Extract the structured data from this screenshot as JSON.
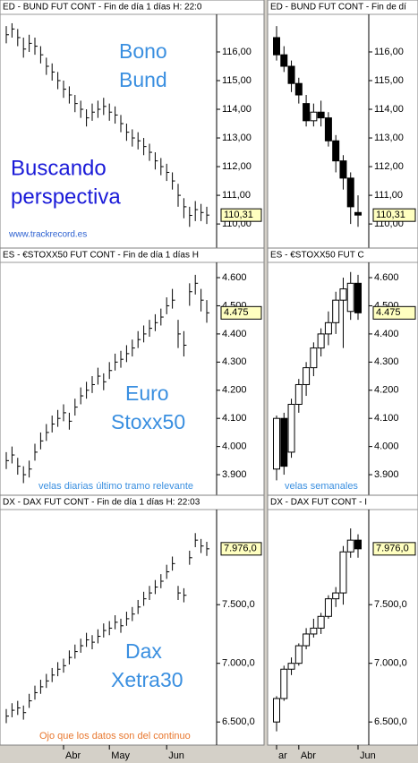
{
  "chart_data": [
    {
      "type": "ohlc",
      "title": "ED - BUND FUT CONT - Fin de día 1 días H: 22:0",
      "high": [
        116.9,
        117.0,
        116.8,
        116.5,
        116.6,
        116.5,
        116.2,
        115.8,
        115.6,
        115.3,
        115.0,
        114.8,
        114.5,
        114.3,
        114.0,
        114.2,
        114.3,
        114.4,
        114.2,
        114.1,
        113.8,
        113.5,
        113.3,
        113.2,
        113.0,
        112.8,
        112.5,
        112.3,
        112.1,
        111.8,
        111.4,
        110.9,
        110.6,
        110.8,
        110.7,
        110.6
      ],
      "low": [
        116.3,
        116.5,
        116.2,
        115.8,
        116.0,
        115.9,
        115.6,
        115.2,
        115.0,
        114.7,
        114.4,
        114.2,
        113.9,
        113.7,
        113.4,
        113.6,
        113.7,
        113.8,
        113.6,
        113.5,
        113.2,
        112.9,
        112.7,
        112.6,
        112.4,
        112.2,
        111.9,
        111.7,
        111.5,
        111.2,
        110.6,
        110.2,
        109.9,
        110.1,
        110.1,
        110.0
      ],
      "close": [
        116.6,
        116.8,
        116.5,
        116.1,
        116.3,
        116.2,
        115.9,
        115.5,
        115.3,
        115.0,
        114.7,
        114.5,
        114.2,
        114.0,
        113.7,
        113.9,
        114.0,
        114.1,
        113.9,
        113.8,
        113.5,
        113.2,
        113.0,
        112.9,
        112.7,
        112.5,
        112.2,
        112.0,
        111.8,
        111.5,
        111.0,
        110.6,
        110.3,
        110.5,
        110.4,
        110.31
      ],
      "ylim": [
        109.16,
        117.28
      ],
      "yticks": [
        {
          "value": 110,
          "label": "110,00"
        },
        {
          "value": 111,
          "label": "111,00"
        },
        {
          "value": 112,
          "label": "112,00"
        },
        {
          "value": 113,
          "label": "113,00"
        },
        {
          "value": 114,
          "label": "114,00"
        },
        {
          "value": 115,
          "label": "115,00"
        },
        {
          "value": 116,
          "label": "116,00"
        }
      ],
      "last": {
        "value": 110.31,
        "label": "110,31"
      },
      "annotations": [
        "Bono",
        "Bund",
        "Buscando",
        "perspectiva",
        "www.trackrecord.es"
      ]
    },
    {
      "type": "candlestick",
      "title": "ED - BUND FUT CONT - Fin de dí",
      "open": [
        116.5,
        115.9,
        115.5,
        114.9,
        114.2,
        113.6,
        113.9,
        113.7,
        112.9,
        112.2,
        111.6,
        110.4
      ],
      "high": [
        116.9,
        116.2,
        115.7,
        115.1,
        114.5,
        114.2,
        114.3,
        113.9,
        113.1,
        112.4,
        111.8,
        111.0
      ],
      "low": [
        115.7,
        115.3,
        114.6,
        114.2,
        113.4,
        113.4,
        113.4,
        112.7,
        111.8,
        111.2,
        110.0,
        109.9
      ],
      "close": [
        115.9,
        115.5,
        114.9,
        114.5,
        113.6,
        113.9,
        113.7,
        112.9,
        112.2,
        111.6,
        110.6,
        110.31
      ],
      "ylim": [
        109.16,
        117.28
      ],
      "yticks": [
        {
          "value": 110,
          "label": "110,00"
        },
        {
          "value": 111,
          "label": "111,00"
        },
        {
          "value": 112,
          "label": "112,00"
        },
        {
          "value": 113,
          "label": "113,00"
        },
        {
          "value": 114,
          "label": "114,00"
        },
        {
          "value": 115,
          "label": "115,00"
        },
        {
          "value": 116,
          "label": "116,00"
        }
      ],
      "last": {
        "value": 110.31,
        "label": "110,31"
      }
    },
    {
      "type": "ohlc",
      "title": "ES - €STOXX50 FUT CONT - Fin de día 1 días H",
      "high": [
        3.98,
        4.0,
        3.96,
        3.93,
        3.95,
        4.01,
        4.05,
        4.08,
        4.11,
        4.13,
        4.15,
        4.12,
        4.17,
        4.21,
        4.23,
        4.25,
        4.28,
        4.26,
        4.3,
        4.33,
        4.34,
        4.36,
        4.38,
        4.41,
        4.43,
        4.45,
        4.47,
        4.49,
        4.53,
        4.56,
        4.45,
        4.41,
        4.58,
        4.61,
        4.56,
        4.52
      ],
      "low": [
        3.92,
        3.94,
        3.9,
        3.87,
        3.89,
        3.95,
        3.99,
        4.02,
        4.05,
        4.07,
        4.09,
        4.06,
        4.11,
        4.15,
        4.17,
        4.19,
        4.22,
        4.2,
        4.24,
        4.27,
        4.28,
        4.3,
        4.32,
        4.35,
        4.37,
        4.39,
        4.41,
        4.43,
        4.47,
        4.49,
        4.35,
        4.32,
        4.5,
        4.54,
        4.48,
        4.44
      ],
      "close": [
        3.95,
        3.97,
        3.93,
        3.9,
        3.92,
        3.98,
        4.02,
        4.05,
        4.08,
        4.1,
        4.12,
        4.09,
        4.14,
        4.18,
        4.2,
        4.22,
        4.25,
        4.23,
        4.27,
        4.3,
        4.31,
        4.33,
        4.35,
        4.38,
        4.4,
        4.42,
        4.44,
        4.46,
        4.5,
        4.52,
        4.4,
        4.36,
        4.55,
        4.58,
        4.52,
        4.475
      ],
      "ylim": [
        3.827,
        4.651
      ],
      "yticks": [
        {
          "value": 3.9,
          "label": "3.900"
        },
        {
          "value": 4.0,
          "label": "4.000"
        },
        {
          "value": 4.1,
          "label": "4.100"
        },
        {
          "value": 4.2,
          "label": "4.200"
        },
        {
          "value": 4.3,
          "label": "4.300"
        },
        {
          "value": 4.4,
          "label": "4.400"
        },
        {
          "value": 4.5,
          "label": "4.500"
        },
        {
          "value": 4.6,
          "label": "4.600"
        }
      ],
      "last": {
        "value": 4.475,
        "label": "4.475"
      },
      "annotations": [
        "Euro",
        "Stoxx50",
        "velas diarias último tramo relevante"
      ]
    },
    {
      "type": "candlestick",
      "title": "ES - €STOXX50 FUT C",
      "open": [
        3.92,
        4.1,
        3.98,
        4.15,
        4.22,
        4.28,
        4.35,
        4.4,
        4.44,
        4.52,
        4.48,
        4.58
      ],
      "high": [
        4.11,
        4.12,
        4.17,
        4.24,
        4.3,
        4.37,
        4.42,
        4.48,
        4.55,
        4.6,
        4.62,
        4.61
      ],
      "low": [
        3.88,
        3.9,
        3.96,
        4.12,
        4.18,
        4.25,
        4.32,
        4.36,
        4.4,
        4.35,
        4.45,
        4.45
      ],
      "close": [
        4.1,
        3.93,
        4.15,
        4.22,
        4.28,
        4.35,
        4.4,
        4.44,
        4.52,
        4.56,
        4.58,
        4.475
      ],
      "ylim": [
        3.827,
        4.651
      ],
      "yticks": [
        {
          "value": 3.9,
          "label": "3.900"
        },
        {
          "value": 4.0,
          "label": "4.000"
        },
        {
          "value": 4.1,
          "label": "4.100"
        },
        {
          "value": 4.2,
          "label": "4.200"
        },
        {
          "value": 4.3,
          "label": "4.300"
        },
        {
          "value": 4.4,
          "label": "4.400"
        },
        {
          "value": 4.5,
          "label": "4.500"
        },
        {
          "value": 4.6,
          "label": "4.600"
        }
      ],
      "last": {
        "value": 4.475,
        "label": "4.475"
      },
      "annotations": [
        "velas semanales"
      ]
    },
    {
      "type": "ohlc",
      "title": "DX - DAX FUT CONT - Fin de día 1 días H: 22:03",
      "high": [
        6610,
        6660,
        6680,
        6640,
        6740,
        6810,
        6860,
        6910,
        6960,
        7010,
        7040,
        7110,
        7160,
        7210,
        7260,
        7240,
        7290,
        7340,
        7360,
        7410,
        7380,
        7440,
        7480,
        7540,
        7610,
        7660,
        7710,
        7760,
        7840,
        7910,
        7660,
        7640,
        7960,
        8110,
        8060,
        8036
      ],
      "low": [
        6490,
        6540,
        6560,
        6520,
        6620,
        6690,
        6740,
        6790,
        6840,
        6890,
        6920,
        6990,
        7040,
        7090,
        7140,
        7120,
        7170,
        7220,
        7240,
        7290,
        7260,
        7320,
        7360,
        7420,
        7490,
        7540,
        7590,
        7640,
        7720,
        7790,
        7540,
        7520,
        7840,
        7990,
        7940,
        7916
      ],
      "close": [
        6550,
        6600,
        6620,
        6580,
        6680,
        6750,
        6800,
        6850,
        6900,
        6950,
        6980,
        7050,
        7100,
        7150,
        7200,
        7180,
        7230,
        7280,
        7300,
        7350,
        7320,
        7380,
        7420,
        7480,
        7550,
        7600,
        7650,
        7700,
        7780,
        7850,
        7600,
        7580,
        7900,
        8050,
        8000,
        7976
      ],
      "ylim": [
        6303,
        8303
      ],
      "yticks": [
        {
          "value": 6500,
          "label": "6.500,0"
        },
        {
          "value": 7000,
          "label": "7.000,0"
        },
        {
          "value": 7500,
          "label": "7.500,0"
        }
      ],
      "last": {
        "value": 7976,
        "label": "7.976,0"
      },
      "xticks": [
        {
          "value": 10,
          "label": "Abr"
        },
        {
          "value": 18,
          "label": "May"
        },
        {
          "value": 28,
          "label": "Jun"
        }
      ],
      "annotations": [
        "Dax",
        "Xetra30",
        "Ojo que los datos son del continuo"
      ]
    },
    {
      "type": "candlestick",
      "title": "DX - DAX FUT CONT - I",
      "open": [
        6500,
        6700,
        6950,
        7000,
        7150,
        7250,
        7300,
        7400,
        7550,
        7600,
        7950,
        8050
      ],
      "high": [
        6720,
        6980,
        7050,
        7170,
        7300,
        7380,
        7430,
        7580,
        7650,
        8000,
        8150,
        8100
      ],
      "low": [
        6420,
        6680,
        6900,
        6980,
        7120,
        7220,
        7250,
        7380,
        7480,
        7500,
        7900,
        7900
      ],
      "close": [
        6700,
        6950,
        7000,
        7150,
        7250,
        7300,
        7400,
        7550,
        7600,
        7950,
        8050,
        7976
      ],
      "ylim": [
        6303,
        8303
      ],
      "yticks": [
        {
          "value": 6500,
          "label": "6.500,0"
        },
        {
          "value": 7000,
          "label": "7.000,0"
        },
        {
          "value": 7500,
          "label": "7.500,0"
        }
      ],
      "last": {
        "value": 7976,
        "label": "7.976,0"
      },
      "xticks": [
        {
          "value": 0,
          "label": "ar"
        },
        {
          "value": 3,
          "label": "Abr"
        },
        {
          "value": 11,
          "label": "Jun"
        }
      ]
    }
  ]
}
